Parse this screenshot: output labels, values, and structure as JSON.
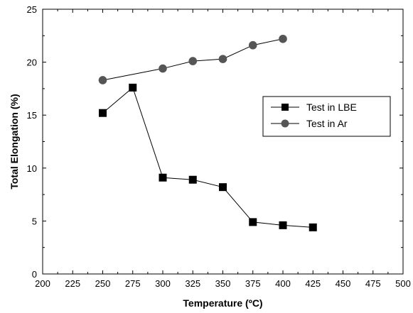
{
  "chart_data": {
    "type": "line",
    "title": "",
    "xlabel": "Temperature (ºC)",
    "ylabel": "Total Elongation (%)",
    "xlim": [
      200,
      500
    ],
    "ylim": [
      0,
      25
    ],
    "x_ticks": [
      200,
      225,
      250,
      275,
      300,
      325,
      350,
      375,
      400,
      425,
      450,
      475,
      500
    ],
    "y_ticks": [
      0,
      5,
      10,
      15,
      20,
      25
    ],
    "grid": false,
    "legend_position": "right",
    "series": [
      {
        "name": "Test in LBE",
        "marker": "square",
        "color": "#000000",
        "x": [
          250,
          275,
          300,
          325,
          350,
          375,
          400,
          425
        ],
        "y": [
          15.2,
          17.6,
          9.1,
          8.9,
          8.2,
          4.9,
          4.6,
          4.4
        ]
      },
      {
        "name": "Test in Ar",
        "marker": "circle",
        "color": "#555555",
        "x": [
          250,
          300,
          325,
          350,
          375,
          400
        ],
        "y": [
          18.3,
          19.4,
          20.1,
          20.3,
          21.6,
          22.2
        ]
      }
    ]
  }
}
